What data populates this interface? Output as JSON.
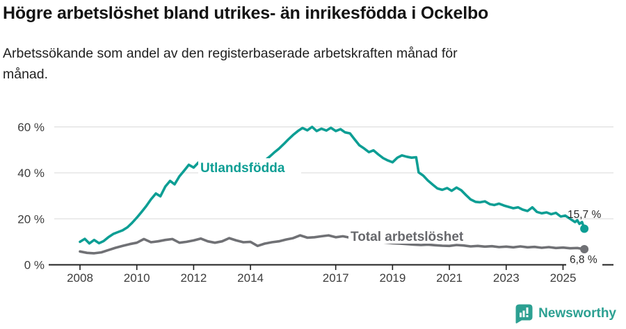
{
  "header": {
    "title": "Högre arbetslöshet bland utrikes- än inrikesfödda i Ockelbo",
    "subtitle": "Arbetssökande som andel av den registerbaserade arbetskraften månad för\nmånad."
  },
  "chart_data": {
    "type": "line",
    "title": "Högre arbetslöshet bland utrikes- än inrikesfödda i Ockelbo",
    "subtitle": "Arbetssökande som andel av den registerbaserade arbetskraften månad för månad.",
    "unit": "%",
    "grid": "horizontal",
    "legend_position": "inline-labels",
    "x_range": [
      2008,
      2025.75
    ],
    "ylim": [
      0,
      63
    ],
    "yticks": [
      "60 %",
      "40 %",
      "20 %",
      "0 %"
    ],
    "ytick_values": [
      60,
      40,
      20,
      0
    ],
    "xticks": [
      "2008",
      "2010",
      "2012",
      "2014",
      "2017",
      "2019",
      "2021",
      "2023",
      "2025"
    ],
    "xtick_values": [
      2008,
      2010,
      2012,
      2014,
      2017,
      2019,
      2021,
      2023,
      2025
    ],
    "series": [
      {
        "name": "Utlandsfödda",
        "color": "#0d9e94",
        "end_label": "15,7 %",
        "end_value": 15.7,
        "points": [
          [
            2008.0,
            10.0
          ],
          [
            2008.17,
            11.3
          ],
          [
            2008.33,
            9.3
          ],
          [
            2008.5,
            10.8
          ],
          [
            2008.67,
            9.4
          ],
          [
            2008.83,
            10.3
          ],
          [
            2009.0,
            12.0
          ],
          [
            2009.17,
            13.4
          ],
          [
            2009.33,
            14.2
          ],
          [
            2009.5,
            15.0
          ],
          [
            2009.67,
            16.3
          ],
          [
            2009.83,
            18.2
          ],
          [
            2010.0,
            20.5
          ],
          [
            2010.17,
            23.0
          ],
          [
            2010.33,
            25.5
          ],
          [
            2010.5,
            28.5
          ],
          [
            2010.67,
            31.0
          ],
          [
            2010.83,
            29.8
          ],
          [
            2011.0,
            34.0
          ],
          [
            2011.17,
            36.5
          ],
          [
            2011.33,
            35.0
          ],
          [
            2011.5,
            38.5
          ],
          [
            2011.67,
            41.0
          ],
          [
            2011.83,
            43.5
          ],
          [
            2012.0,
            42.3
          ],
          [
            2012.17,
            44.5
          ],
          [
            2012.33,
            43.0
          ],
          [
            2012.5,
            44.2
          ],
          [
            2012.67,
            43.2
          ],
          [
            2012.83,
            44.8
          ],
          [
            2013.0,
            43.0
          ],
          [
            2013.17,
            42.0
          ],
          [
            2013.33,
            43.5
          ],
          [
            2013.5,
            42.0
          ],
          [
            2013.67,
            40.8
          ],
          [
            2013.83,
            42.5
          ],
          [
            2014.0,
            43.8
          ],
          [
            2014.17,
            42.8
          ],
          [
            2014.33,
            44.0
          ],
          [
            2014.5,
            45.3
          ],
          [
            2014.67,
            47.0
          ],
          [
            2014.83,
            48.8
          ],
          [
            2015.0,
            50.5
          ],
          [
            2015.17,
            52.5
          ],
          [
            2015.33,
            54.5
          ],
          [
            2015.5,
            56.5
          ],
          [
            2015.67,
            58.2
          ],
          [
            2015.83,
            59.5
          ],
          [
            2016.0,
            58.5
          ],
          [
            2016.17,
            60.0
          ],
          [
            2016.33,
            58.2
          ],
          [
            2016.5,
            59.2
          ],
          [
            2016.67,
            58.4
          ],
          [
            2016.83,
            59.6
          ],
          [
            2017.0,
            58.2
          ],
          [
            2017.17,
            59.0
          ],
          [
            2017.33,
            57.6
          ],
          [
            2017.5,
            57.2
          ],
          [
            2017.67,
            54.5
          ],
          [
            2017.83,
            52.0
          ],
          [
            2018.0,
            50.6
          ],
          [
            2018.17,
            49.0
          ],
          [
            2018.33,
            49.8
          ],
          [
            2018.5,
            48.0
          ],
          [
            2018.67,
            46.4
          ],
          [
            2018.83,
            45.4
          ],
          [
            2019.0,
            44.6
          ],
          [
            2019.17,
            46.6
          ],
          [
            2019.33,
            47.6
          ],
          [
            2019.5,
            47.0
          ],
          [
            2019.67,
            46.6
          ],
          [
            2019.83,
            46.8
          ],
          [
            2019.92,
            40.2
          ],
          [
            2020.08,
            38.8
          ],
          [
            2020.25,
            36.6
          ],
          [
            2020.42,
            34.8
          ],
          [
            2020.58,
            33.2
          ],
          [
            2020.75,
            32.6
          ],
          [
            2020.92,
            33.4
          ],
          [
            2021.08,
            32.2
          ],
          [
            2021.25,
            33.6
          ],
          [
            2021.42,
            32.4
          ],
          [
            2021.58,
            30.4
          ],
          [
            2021.75,
            28.4
          ],
          [
            2021.92,
            27.4
          ],
          [
            2022.08,
            27.2
          ],
          [
            2022.25,
            27.6
          ],
          [
            2022.42,
            26.4
          ],
          [
            2022.58,
            26.0
          ],
          [
            2022.75,
            26.6
          ],
          [
            2022.92,
            25.8
          ],
          [
            2023.08,
            25.2
          ],
          [
            2023.25,
            24.6
          ],
          [
            2023.42,
            25.0
          ],
          [
            2023.58,
            24.0
          ],
          [
            2023.75,
            23.4
          ],
          [
            2023.92,
            25.0
          ],
          [
            2024.08,
            23.0
          ],
          [
            2024.25,
            22.4
          ],
          [
            2024.42,
            22.8
          ],
          [
            2024.58,
            22.0
          ],
          [
            2024.75,
            22.6
          ],
          [
            2024.92,
            21.0
          ],
          [
            2025.08,
            21.4
          ],
          [
            2025.25,
            20.0
          ],
          [
            2025.42,
            18.6
          ],
          [
            2025.5,
            19.4
          ],
          [
            2025.58,
            17.8
          ],
          [
            2025.67,
            18.6
          ],
          [
            2025.75,
            15.7
          ]
        ]
      },
      {
        "name": "Total arbetslöshet",
        "color": "#707175",
        "end_label": "6,8 %",
        "end_value": 6.8,
        "points": [
          [
            2008.0,
            5.8
          ],
          [
            2008.25,
            5.2
          ],
          [
            2008.5,
            5.0
          ],
          [
            2008.75,
            5.4
          ],
          [
            2009.0,
            6.4
          ],
          [
            2009.25,
            7.4
          ],
          [
            2009.5,
            8.2
          ],
          [
            2009.75,
            9.0
          ],
          [
            2010.0,
            9.6
          ],
          [
            2010.25,
            11.2
          ],
          [
            2010.5,
            9.8
          ],
          [
            2010.75,
            10.2
          ],
          [
            2011.0,
            10.8
          ],
          [
            2011.25,
            11.2
          ],
          [
            2011.5,
            9.6
          ],
          [
            2011.75,
            10.0
          ],
          [
            2012.0,
            10.6
          ],
          [
            2012.25,
            11.4
          ],
          [
            2012.5,
            10.2
          ],
          [
            2012.75,
            9.6
          ],
          [
            2013.0,
            10.2
          ],
          [
            2013.25,
            11.6
          ],
          [
            2013.5,
            10.6
          ],
          [
            2013.75,
            9.8
          ],
          [
            2014.0,
            10.0
          ],
          [
            2014.25,
            8.2
          ],
          [
            2014.5,
            9.2
          ],
          [
            2014.75,
            9.8
          ],
          [
            2015.0,
            10.2
          ],
          [
            2015.25,
            11.0
          ],
          [
            2015.5,
            11.6
          ],
          [
            2015.75,
            12.8
          ],
          [
            2016.0,
            11.8
          ],
          [
            2016.25,
            12.0
          ],
          [
            2016.5,
            12.4
          ],
          [
            2016.75,
            12.8
          ],
          [
            2017.0,
            12.0
          ],
          [
            2017.25,
            12.4
          ],
          [
            2017.5,
            11.8
          ],
          [
            2017.75,
            11.2
          ],
          [
            2018.0,
            10.8
          ],
          [
            2018.25,
            10.4
          ],
          [
            2018.5,
            10.0
          ],
          [
            2018.75,
            9.7
          ],
          [
            2019.0,
            9.4
          ],
          [
            2019.25,
            9.2
          ],
          [
            2019.5,
            9.0
          ],
          [
            2019.75,
            8.8
          ],
          [
            2020.0,
            8.6
          ],
          [
            2020.25,
            8.8
          ],
          [
            2020.5,
            8.5
          ],
          [
            2020.75,
            8.3
          ],
          [
            2021.0,
            8.2
          ],
          [
            2021.25,
            8.6
          ],
          [
            2021.5,
            8.4
          ],
          [
            2021.75,
            8.0
          ],
          [
            2022.0,
            8.2
          ],
          [
            2022.25,
            7.9
          ],
          [
            2022.5,
            8.1
          ],
          [
            2022.75,
            7.7
          ],
          [
            2023.0,
            7.9
          ],
          [
            2023.25,
            7.6
          ],
          [
            2023.5,
            8.0
          ],
          [
            2023.75,
            7.6
          ],
          [
            2024.0,
            7.8
          ],
          [
            2024.25,
            7.4
          ],
          [
            2024.5,
            7.7
          ],
          [
            2024.75,
            7.3
          ],
          [
            2025.0,
            7.5
          ],
          [
            2025.25,
            7.2
          ],
          [
            2025.5,
            7.3
          ],
          [
            2025.75,
            6.8
          ]
        ]
      }
    ],
    "colors": {
      "grid": "#e0e0e0",
      "axis": "#1f1f1f",
      "tick_text": "#3c3c3c"
    }
  },
  "footer": {
    "brand": "Newsworthy",
    "brand_color": "#2ca092",
    "logo_icon": "speech-bubble-bar-chart-icon"
  }
}
